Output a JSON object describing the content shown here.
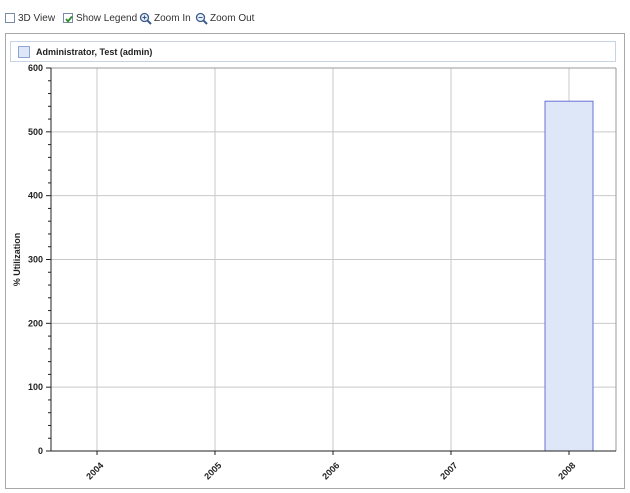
{
  "toolbar": {
    "view3d": {
      "label": "3D View",
      "checked": false
    },
    "show_legend": {
      "label": "Show Legend",
      "checked": true
    },
    "zoom_in": {
      "label": "Zoom In",
      "icon": "zoom-in-icon"
    },
    "zoom_out": {
      "label": "Zoom Out",
      "icon": "zoom-out-icon"
    }
  },
  "colors": {
    "bar_fill": "#dde7f7",
    "bar_stroke": "#6b72d8",
    "grid": "#c9c9c9",
    "axis": "#222222"
  },
  "chart_data": {
    "type": "bar",
    "categories": [
      "2004",
      "2005",
      "2006",
      "2007",
      "2008"
    ],
    "series": [
      {
        "name": "Administrator, Test (admin)",
        "values": [
          0,
          0,
          0,
          0,
          548
        ]
      }
    ],
    "ylabel": "% Utilization",
    "xlabel": "",
    "ylim": [
      0,
      600
    ],
    "yticks": [
      "0",
      "100",
      "200",
      "300",
      "400",
      "500",
      "600"
    ],
    "grid": true,
    "legend": "top"
  }
}
